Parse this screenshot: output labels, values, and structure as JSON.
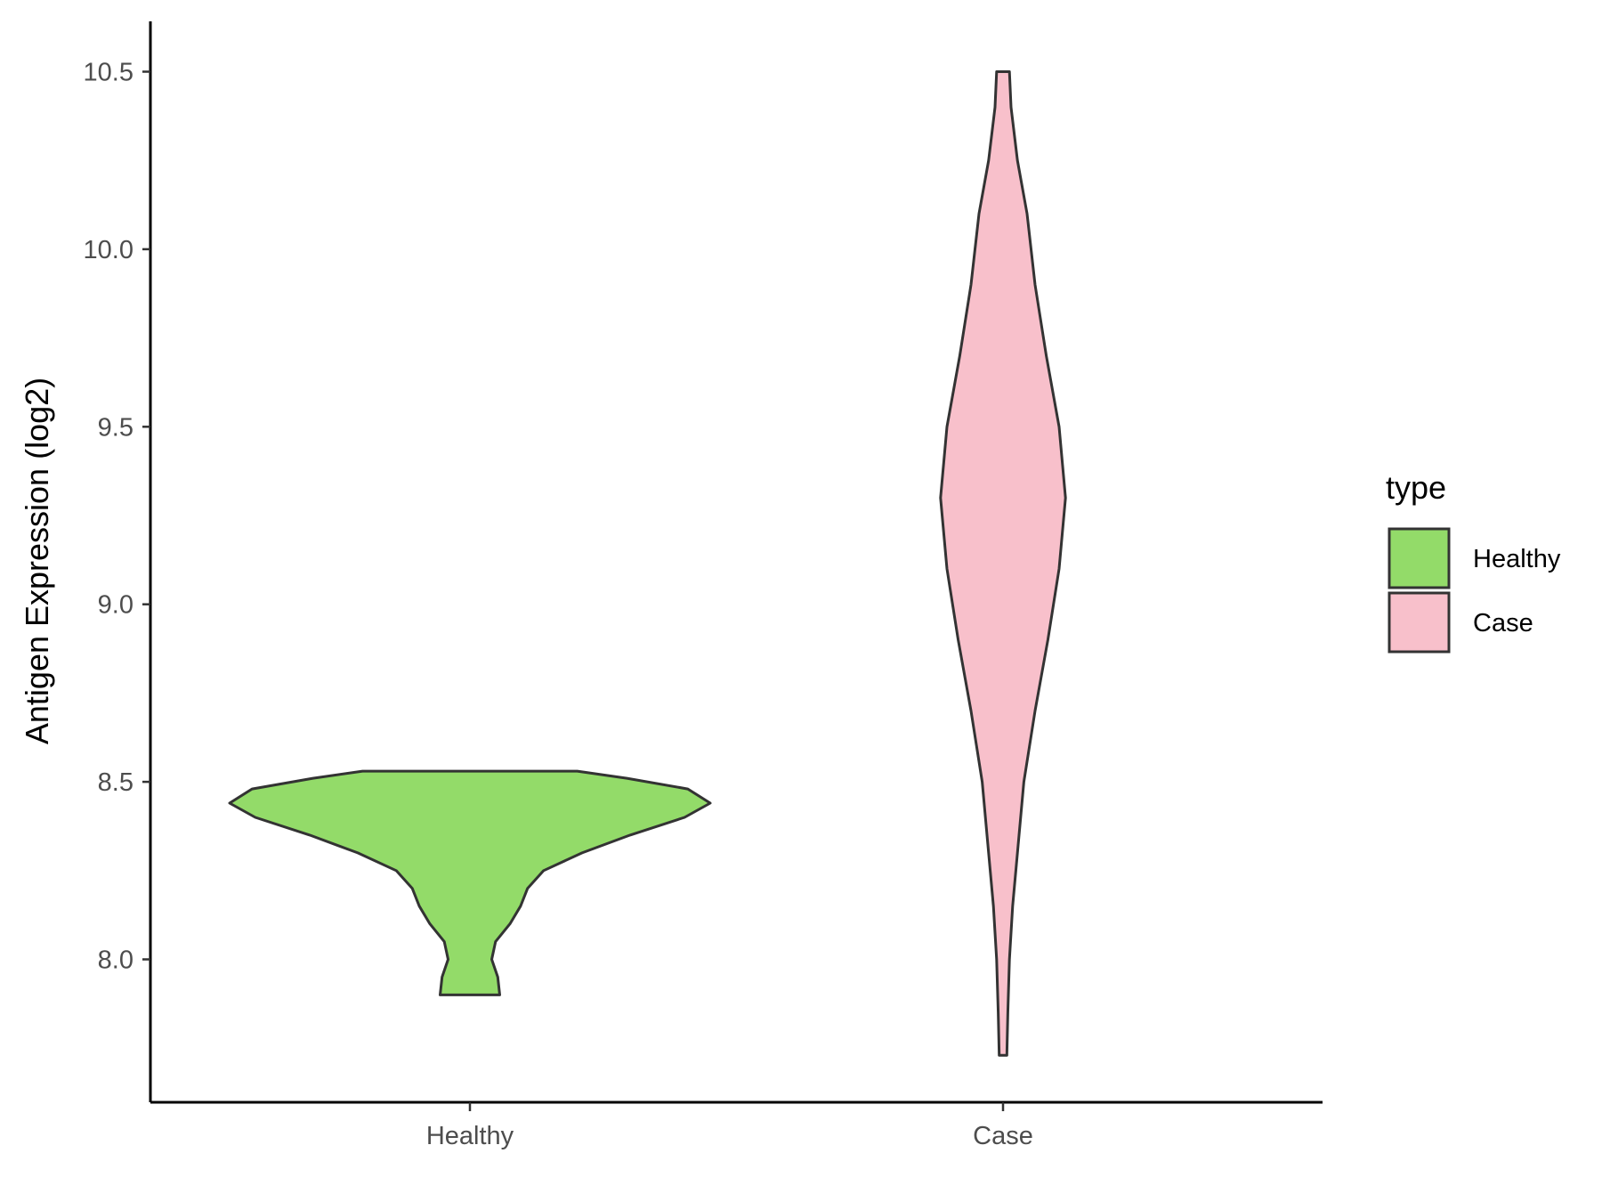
{
  "chart_data": {
    "type": "violin",
    "title": "",
    "xlabel": "",
    "ylabel": "Antigen Expression (log2)",
    "categories": [
      "Healthy",
      "Case"
    ],
    "yticks": [
      "8.0",
      "8.5",
      "9.0",
      "9.5",
      "10.0",
      "10.5"
    ],
    "ylim": [
      7.6,
      10.64
    ],
    "grid": false,
    "legend": {
      "title": "type",
      "position": "right",
      "entries": [
        "Healthy",
        "Case"
      ]
    },
    "series": [
      {
        "name": "Healthy",
        "color": "#93DB69",
        "min": 7.9,
        "max": 8.53,
        "density": [
          [
            7.9,
            0.093
          ],
          [
            7.95,
            0.087
          ],
          [
            8.0,
            0.068
          ],
          [
            8.05,
            0.08
          ],
          [
            8.1,
            0.125
          ],
          [
            8.15,
            0.158
          ],
          [
            8.2,
            0.18
          ],
          [
            8.25,
            0.23
          ],
          [
            8.3,
            0.35
          ],
          [
            8.35,
            0.5
          ],
          [
            8.4,
            0.67
          ],
          [
            8.44,
            0.75
          ],
          [
            8.48,
            0.68
          ],
          [
            8.51,
            0.49
          ],
          [
            8.53,
            0.335
          ]
        ]
      },
      {
        "name": "Case",
        "color": "#F8C0CB",
        "min": 7.73,
        "max": 10.5,
        "density": [
          [
            7.73,
            0.012
          ],
          [
            7.85,
            0.015
          ],
          [
            8.0,
            0.02
          ],
          [
            8.15,
            0.03
          ],
          [
            8.3,
            0.045
          ],
          [
            8.5,
            0.065
          ],
          [
            8.7,
            0.1
          ],
          [
            8.9,
            0.14
          ],
          [
            9.1,
            0.175
          ],
          [
            9.3,
            0.195
          ],
          [
            9.5,
            0.175
          ],
          [
            9.7,
            0.135
          ],
          [
            9.9,
            0.1
          ],
          [
            10.1,
            0.075
          ],
          [
            10.25,
            0.045
          ],
          [
            10.4,
            0.025
          ],
          [
            10.5,
            0.02
          ]
        ]
      }
    ]
  }
}
